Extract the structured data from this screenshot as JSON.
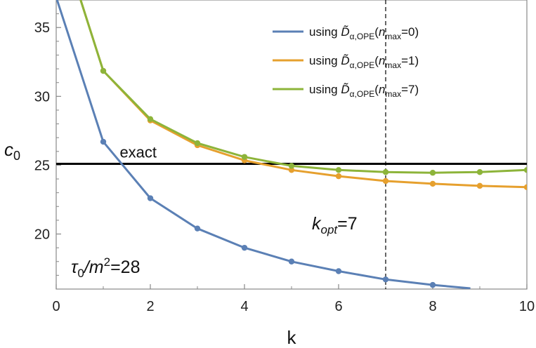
{
  "chart_data": {
    "type": "line",
    "xlabel": "k",
    "ylabel": "c",
    "ylabel_sub": "0",
    "xlim": [
      0,
      10
    ],
    "ylim": [
      16,
      37
    ],
    "xticks": [
      0,
      2,
      4,
      6,
      8,
      10
    ],
    "yticks": [
      20,
      25,
      30,
      35
    ],
    "legend_position": "top-right",
    "series": [
      {
        "name": "using D̃α,OPE(nmax=0)",
        "legend_prefix": "using ",
        "legend_D": "D̃",
        "legend_sub": "α,OPE",
        "legend_n": "n",
        "legend_nsub": "max",
        "legend_val": "=0)",
        "color": "#5b80b5",
        "x": [
          0,
          1,
          2,
          3,
          4,
          5,
          6,
          7,
          8,
          8.8
        ],
        "values": [
          37.2,
          26.7,
          22.6,
          20.4,
          19.0,
          18.0,
          17.3,
          16.7,
          16.3,
          16.05
        ],
        "markers": [
          1,
          2,
          3,
          4,
          5,
          6,
          7,
          8
        ]
      },
      {
        "name": "using D̃α,OPE(nmax=1)",
        "legend_prefix": "using ",
        "legend_D": "D̃",
        "legend_sub": "α,OPE",
        "legend_n": "n",
        "legend_nsub": "max",
        "legend_val": "=1)",
        "color": "#e6a02e",
        "x": [
          0.52,
          1,
          2,
          3,
          4,
          5,
          6,
          7,
          8,
          9,
          10
        ],
        "values": [
          37,
          31.85,
          28.25,
          26.45,
          25.35,
          24.65,
          24.2,
          23.85,
          23.65,
          23.5,
          23.4
        ],
        "markers": [
          1,
          2,
          3,
          4,
          5,
          6,
          7,
          8,
          9,
          10
        ]
      },
      {
        "name": "using D̃α,OPE(nmax=7)",
        "legend_prefix": "using ",
        "legend_D": "D̃",
        "legend_sub": "α,OPE",
        "legend_n": "n",
        "legend_nsub": "max",
        "legend_val": "=7)",
        "color": "#8db43a",
        "x": [
          0.52,
          1,
          2,
          3,
          4,
          5,
          6,
          7,
          8,
          9,
          10
        ],
        "values": [
          37,
          31.85,
          28.35,
          26.6,
          25.6,
          24.95,
          24.65,
          24.5,
          24.45,
          24.5,
          24.65
        ],
        "markers": [
          1,
          2,
          3,
          4,
          5,
          6,
          7,
          8,
          9,
          10
        ]
      }
    ],
    "reference_line": {
      "y": 25.1,
      "label": "exact",
      "color": "#000000"
    },
    "vertical_line": {
      "x": 7,
      "label_k": "k",
      "label_sub": "opt",
      "label_val": "=7"
    },
    "annotation": {
      "tau": "τ",
      "tau_sub": "0",
      "mid": "/m",
      "sup": "2",
      "val": "=28"
    }
  }
}
